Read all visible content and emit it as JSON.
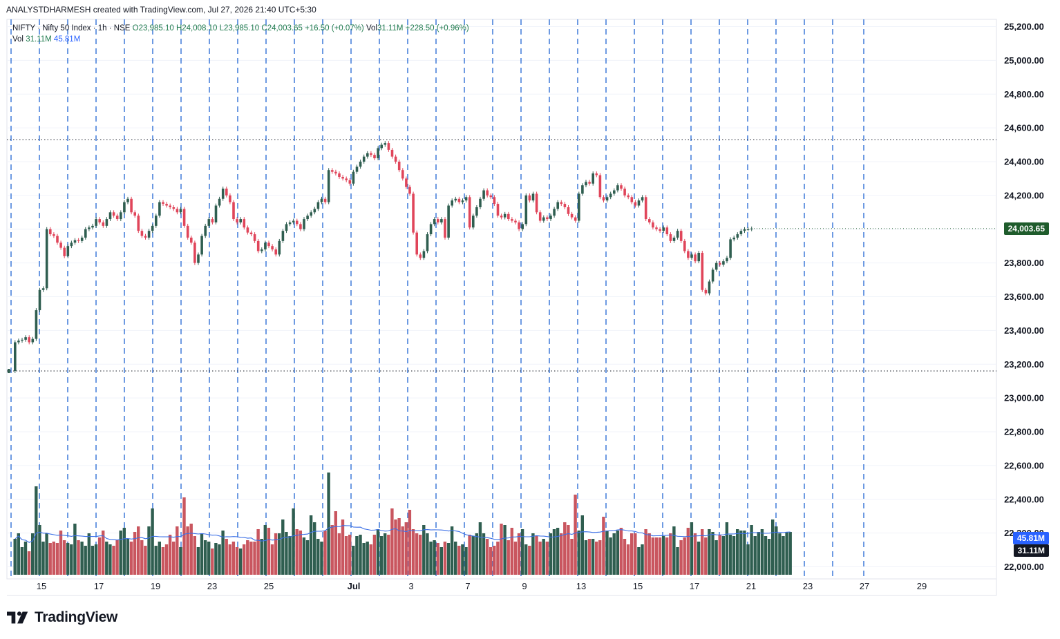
{
  "header": {
    "credit": "ANALYSTDHARMESH created with TradingView.com, Jul 27, 2026 21:40 UTC+5:30"
  },
  "legend": {
    "symbol": "NIFTY · Nifty 50 Index · 1h · NSE",
    "open": "O23,985.10",
    "high": "H24,008.10",
    "low": "L23,985.10",
    "close": "C24,003.65",
    "change": "+16.50 (+0.07%)",
    "vol_label": "Vol",
    "vol_value": "31.11M",
    "vol_change": "+228.50 (+0.96%)",
    "vol2_label": "Vol",
    "vol2_value": "31.11M",
    "vol2_ma": "45.81M"
  },
  "colors": {
    "up": "#2f5e50",
    "down": "#e0455a",
    "vol_up": "#2f5e50",
    "vol_down": "#c9565f",
    "vol_ma": "#3b6fe6",
    "session_line": "#2f6fd6",
    "price_tag": "#1f5c2c",
    "ma_tag": "#2962ff",
    "vol_tag": "#131722"
  },
  "chart_data": {
    "type": "candlestick",
    "symbol": "NIFTY",
    "interval": "1h",
    "y_axis": {
      "min": 21900,
      "max": 25250,
      "ticks": [
        "25,200.00",
        "25,000.00",
        "24,800.00",
        "24,600.00",
        "24,400.00",
        "24,200.00",
        "24,000.00",
        "23,800.00",
        "23,600.00",
        "23,400.00",
        "23,200.00",
        "23,000.00",
        "22,800.00",
        "22,600.00",
        "22,400.00",
        "22,200.00",
        "22,000.00"
      ],
      "tick_values": [
        25200,
        25000,
        24800,
        24600,
        24400,
        24200,
        24000,
        23800,
        23600,
        23400,
        23200,
        23000,
        22800,
        22600,
        22400,
        22200,
        22000
      ]
    },
    "x_axis": {
      "labels": [
        "15",
        "17",
        "19",
        "23",
        "25",
        "Jul",
        "3",
        "7",
        "9",
        "13",
        "15",
        "17",
        "21",
        "23",
        "27",
        "29"
      ]
    },
    "last_price": "24,003.65",
    "last_value": 24003.65,
    "volume_ma_label": "45.81M",
    "volume_label": "31.11M",
    "reference_levels": [
      24530,
      23160
    ],
    "first_close": 23160,
    "closes": [
      23330,
      23340,
      23345,
      23360,
      23330,
      23350,
      23520,
      23640,
      23650,
      24000,
      23970,
      23960,
      23920,
      23890,
      23840,
      23900,
      23920,
      23935,
      23930,
      23950,
      24000,
      24010,
      24020,
      24060,
      24040,
      24020,
      24060,
      24100,
      24080,
      24060,
      24100,
      24160,
      24180,
      24100,
      24080,
      23990,
      23960,
      23950,
      23990,
      24020,
      24080,
      24160,
      24150,
      24140,
      24130,
      24120,
      24100,
      24120,
      24020,
      23950,
      23920,
      23800,
      23850,
      23960,
      24020,
      24060,
      24040,
      24140,
      24180,
      24240,
      24200,
      24160,
      24060,
      24040,
      24060,
      24010,
      23980,
      23970,
      23930,
      23870,
      23880,
      23920,
      23900,
      23880,
      23850,
      23930,
      23990,
      24030,
      24040,
      24050,
      24030,
      24000,
      24060,
      24080,
      24100,
      24120,
      24160,
      24180,
      24160,
      24350,
      24340,
      24330,
      24310,
      24300,
      24290,
      24270,
      24340,
      24370,
      24400,
      24430,
      24450,
      24440,
      24420,
      24480,
      24500,
      24510,
      24470,
      24430,
      24400,
      24350,
      24300,
      24250,
      24210,
      23980,
      23850,
      23830,
      23870,
      23970,
      24030,
      24060,
      24040,
      24060,
      23950,
      24140,
      24170,
      24180,
      24160,
      24170,
      24190,
      24010,
      24080,
      24130,
      24180,
      24230,
      24200,
      24190,
      24150,
      24080,
      24070,
      24090,
      24060,
      24050,
      24040,
      24000,
      24030,
      24200,
      24170,
      24210,
      24100,
      24050,
      24070,
      24060,
      24080,
      24120,
      24160,
      24150,
      24130,
      24090,
      24070,
      24050,
      24210,
      24260,
      24280,
      24270,
      24330,
      24320,
      24190,
      24170,
      24190,
      24210,
      24230,
      24260,
      24240,
      24200,
      24190,
      24160,
      24140,
      24170,
      24190,
      24060,
      24040,
      24010,
      24000,
      23990,
      24010,
      23970,
      23930,
      23950,
      23990,
      23930,
      23870,
      23830,
      23850,
      23810,
      23860,
      23640,
      23620,
      23690,
      23760,
      23800,
      23790,
      23810,
      23830,
      23940,
      23950,
      23970,
      23990,
      24000,
      24000,
      24003.65
    ],
    "volume_m": [
      26,
      30,
      20,
      24,
      17,
      30,
      64,
      36,
      24,
      30,
      23,
      24,
      23,
      32,
      25,
      23,
      22,
      37,
      25,
      24,
      21,
      30,
      21,
      22,
      27,
      32,
      24,
      22,
      21,
      25,
      32,
      34,
      26,
      24,
      31,
      35,
      25,
      21,
      35,
      48,
      21,
      24,
      20,
      22,
      29,
      24,
      35,
      20,
      56,
      35,
      37,
      28,
      20,
      30,
      25,
      24,
      19,
      23,
      22,
      32,
      26,
      22,
      24,
      20,
      19,
      22,
      25,
      24,
      24,
      33,
      26,
      36,
      34,
      22,
      30,
      30,
      40,
      31,
      28,
      48,
      33,
      32,
      27,
      25,
      43,
      38,
      26,
      24,
      32,
      74,
      36,
      46,
      30,
      40,
      28,
      29,
      21,
      28,
      29,
      23,
      24,
      22,
      29,
      33,
      28,
      30,
      29,
      48,
      40,
      41,
      35,
      38,
      47,
      33,
      30,
      29,
      36,
      30,
      24,
      25,
      23,
      20,
      24,
      23,
      35,
      24,
      21,
      22,
      20,
      29,
      28,
      30,
      38,
      30,
      26,
      20,
      21,
      24,
      37,
      36,
      25,
      34,
      24,
      30,
      33,
      22,
      21,
      30,
      28,
      24,
      26,
      24,
      30,
      33,
      34,
      30,
      38,
      36,
      26,
      58,
      32,
      43,
      25,
      26,
      26,
      24,
      25,
      42,
      32,
      27,
      30,
      32,
      34,
      26,
      22,
      30,
      30,
      20,
      22,
      33,
      30,
      27,
      27,
      27,
      28,
      27,
      30,
      35,
      20,
      25,
      27,
      34,
      38,
      30,
      24,
      33,
      27,
      33,
      31,
      25,
      29,
      28,
      38,
      29,
      28,
      33,
      32,
      32,
      22,
      36,
      28,
      31,
      33,
      28,
      26,
      40,
      35,
      30,
      28,
      31,
      31
    ]
  }
}
